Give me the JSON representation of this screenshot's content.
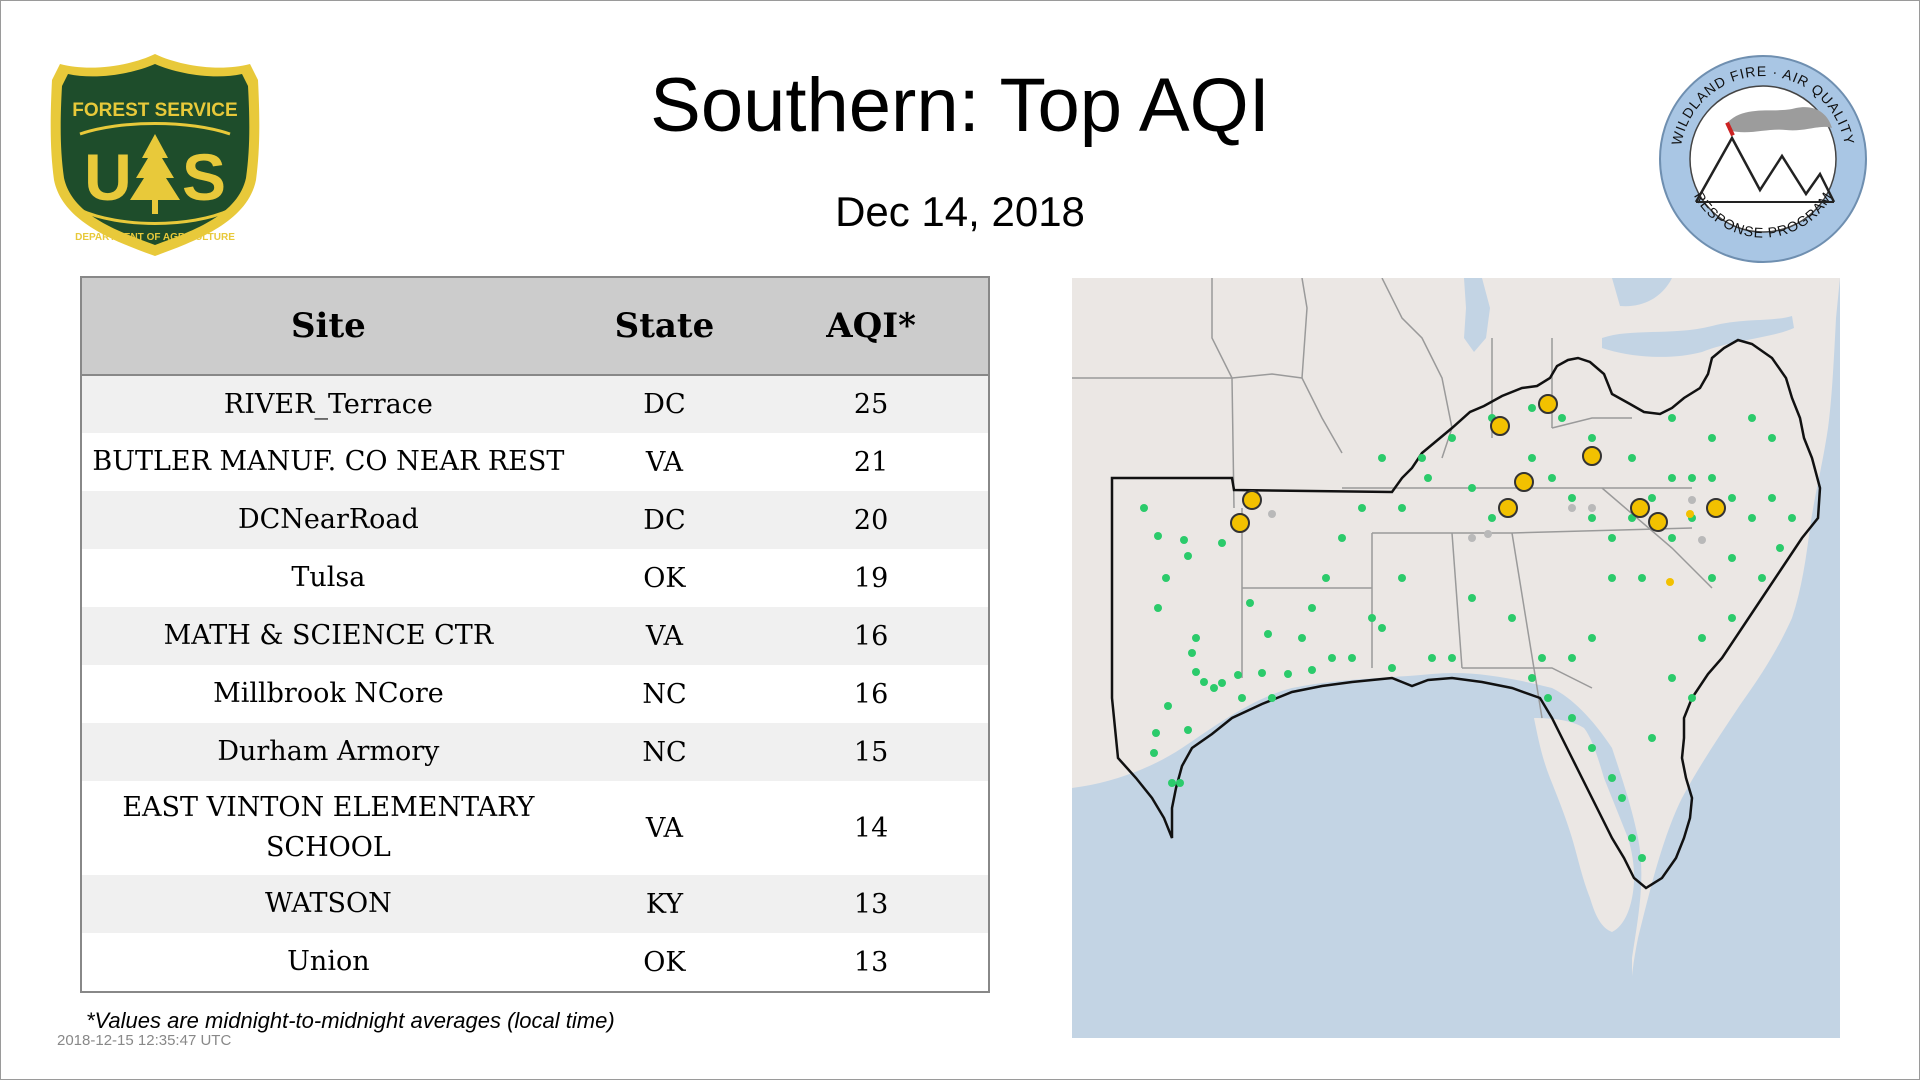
{
  "title": "Southern: Top AQI",
  "date": "Dec 14, 2018",
  "logos": {
    "forest_service": {
      "top_text": "FOREST SERVICE",
      "letters": "US",
      "bottom_text": "DEPARTMENT OF AGRICULTURE",
      "colors": {
        "green": "#1e4d2b",
        "gold": "#e8c93a"
      }
    },
    "wildland_fire": {
      "top_text": "WILDLAND FIRE · AIR QUALITY",
      "bottom_text": "RESPONSE PROGRAM",
      "colors": {
        "ring": "#a9c6e4",
        "smoke": "#9c9c9c",
        "flame": "#cc2222"
      }
    }
  },
  "table": {
    "headers": {
      "site": "Site",
      "state": "State",
      "aqi": "AQI*"
    },
    "rows": [
      {
        "site": "RIVER_Terrace",
        "state": "DC",
        "aqi": "25"
      },
      {
        "site": "BUTLER MANUF. CO NEAR REST",
        "state": "VA",
        "aqi": "21"
      },
      {
        "site": "DCNearRoad",
        "state": "DC",
        "aqi": "20"
      },
      {
        "site": "Tulsa",
        "state": "OK",
        "aqi": "19"
      },
      {
        "site": "MATH & SCIENCE CTR",
        "state": "VA",
        "aqi": "16"
      },
      {
        "site": "Millbrook NCore",
        "state": "NC",
        "aqi": "16"
      },
      {
        "site": "Durham Armory",
        "state": "NC",
        "aqi": "15"
      },
      {
        "site": "EAST VINTON ELEMENTARY SCHOOL",
        "state": "VA",
        "aqi": "14"
      },
      {
        "site": "WATSON",
        "state": "KY",
        "aqi": "13"
      },
      {
        "site": "Union",
        "state": "OK",
        "aqi": "13"
      }
    ]
  },
  "footnote": "*Values are midnight-to-midnight averages (local time)",
  "timestamp": "2018-12-15 12:35:47 UTC",
  "map": {
    "colors": {
      "land": "#ebe7e4",
      "water": "#c3d4e4",
      "good_aqi": "#2bcb6b",
      "moderate_aqi": "#f2c100",
      "no_data": "#b9b9b9",
      "region_border": "#111111",
      "state_border": "#9a9a9a"
    }
  }
}
